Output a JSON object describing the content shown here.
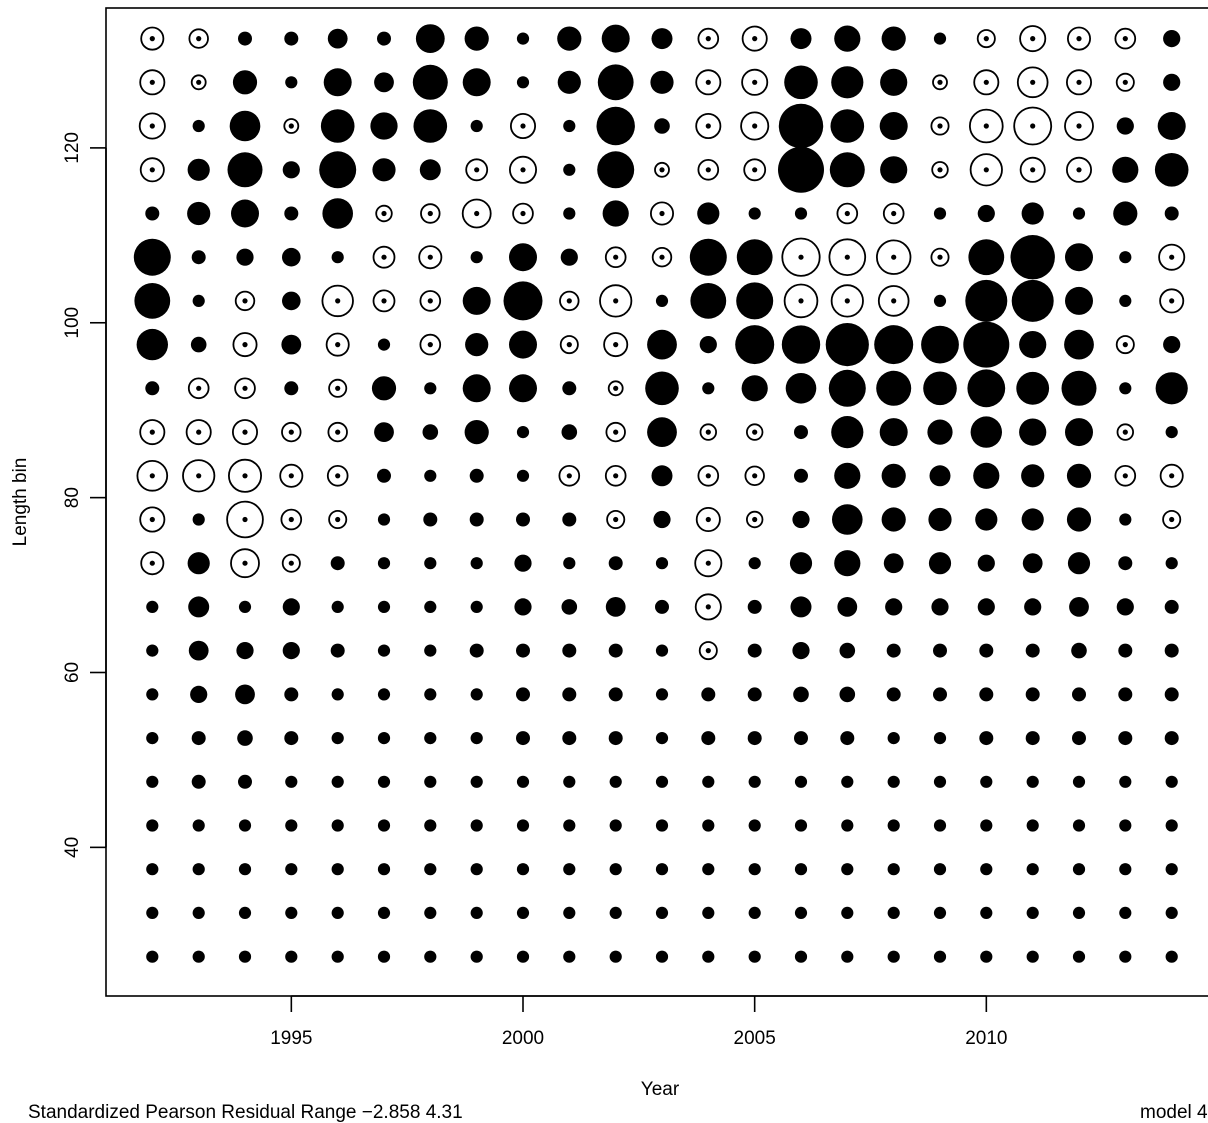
{
  "chart_data": {
    "type": "scatter",
    "subtype": "bubble-residual",
    "xlabel": "Year",
    "ylabel": "Length bin",
    "x_ticks": [
      1995,
      2000,
      2005,
      2010
    ],
    "y_ticks": [
      40,
      60,
      80,
      100,
      120
    ],
    "xlim": [
      1991.0,
      2015.0
    ],
    "ylim": [
      23.0,
      136.0
    ],
    "grid": false,
    "legend": "none",
    "footer_left": "Standardized Pearson Residual Range  −2.858 4.31",
    "footer_right": "model 4",
    "years": [
      1992,
      1993,
      1994,
      1995,
      1996,
      1997,
      1998,
      1999,
      2000,
      2001,
      2002,
      2003,
      2004,
      2005,
      2006,
      2007,
      2008,
      2009,
      2010,
      2011,
      2012,
      2013,
      2014
    ],
    "bins": [
      27.5,
      32.5,
      37.5,
      42.5,
      47.5,
      52.5,
      57.5,
      62.5,
      67.5,
      72.5,
      77.5,
      82.5,
      87.5,
      92.5,
      97.5,
      102.5,
      107.5,
      112.5,
      117.5,
      122.5,
      127.5,
      132.5
    ],
    "note_values": "residuals[i][j] = residual for bins[i] (row) and years[j] (column); filled = positive, open = negative; bubble area proportional to |residual|",
    "residuals": [
      [
        0.3,
        0.3,
        0.3,
        0.3,
        0.3,
        0.3,
        0.3,
        0.3,
        0.3,
        0.3,
        0.3,
        0.3,
        0.3,
        0.3,
        0.3,
        0.3,
        0.3,
        0.3,
        0.3,
        0.3,
        0.3,
        0.3,
        0.3
      ],
      [
        0.3,
        0.3,
        0.3,
        0.3,
        0.3,
        0.3,
        0.3,
        0.3,
        0.3,
        0.3,
        0.3,
        0.3,
        0.3,
        0.3,
        0.3,
        0.3,
        0.3,
        0.3,
        0.3,
        0.3,
        0.3,
        0.3,
        0.3
      ],
      [
        0.3,
        0.3,
        0.3,
        0.3,
        0.3,
        0.3,
        0.3,
        0.3,
        0.3,
        0.3,
        0.3,
        0.3,
        0.3,
        0.3,
        0.3,
        0.3,
        0.3,
        0.3,
        0.3,
        0.3,
        0.3,
        0.3,
        0.3
      ],
      [
        0.3,
        0.3,
        0.3,
        0.3,
        0.3,
        0.3,
        0.3,
        0.3,
        0.3,
        0.3,
        0.3,
        0.3,
        0.3,
        0.3,
        0.3,
        0.3,
        0.3,
        0.3,
        0.3,
        0.3,
        0.3,
        0.3,
        0.3
      ],
      [
        0.3,
        0.4,
        0.4,
        0.3,
        0.3,
        0.3,
        0.3,
        0.3,
        0.3,
        0.3,
        0.3,
        0.3,
        0.3,
        0.3,
        0.3,
        0.3,
        0.3,
        0.3,
        0.3,
        0.3,
        0.3,
        0.3,
        0.3
      ],
      [
        0.3,
        0.4,
        0.5,
        0.4,
        0.3,
        0.3,
        0.3,
        0.3,
        0.4,
        0.4,
        0.4,
        0.3,
        0.4,
        0.4,
        0.4,
        0.4,
        0.3,
        0.3,
        0.4,
        0.4,
        0.4,
        0.4,
        0.4
      ],
      [
        0.3,
        0.6,
        0.8,
        0.4,
        0.3,
        0.3,
        0.3,
        0.3,
        0.4,
        0.4,
        0.4,
        0.3,
        0.4,
        0.4,
        0.5,
        0.5,
        0.4,
        0.4,
        0.4,
        0.4,
        0.4,
        0.4,
        0.4
      ],
      [
        0.3,
        0.8,
        0.6,
        0.6,
        0.4,
        0.3,
        0.3,
        0.4,
        0.4,
        0.4,
        0.4,
        0.3,
        -0.6,
        0.4,
        0.6,
        0.5,
        0.4,
        0.4,
        0.4,
        0.4,
        0.5,
        0.4,
        0.4
      ],
      [
        0.3,
        0.9,
        0.3,
        0.6,
        0.3,
        0.3,
        0.3,
        0.3,
        0.6,
        0.5,
        0.8,
        0.4,
        -1.3,
        0.4,
        0.9,
        0.8,
        0.6,
        0.6,
        0.6,
        0.6,
        0.8,
        0.6,
        0.4
      ],
      [
        -1.0,
        1.0,
        -1.6,
        -0.6,
        0.4,
        0.3,
        0.3,
        0.3,
        0.6,
        0.3,
        0.4,
        0.3,
        -1.4,
        0.3,
        1.0,
        1.4,
        0.8,
        1.0,
        0.6,
        0.8,
        1.0,
        0.4,
        0.3
      ],
      [
        -1.2,
        0.3,
        -2.6,
        -0.8,
        -0.6,
        0.3,
        0.4,
        0.4,
        0.4,
        0.4,
        -0.6,
        0.6,
        -1.1,
        -0.5,
        0.6,
        1.9,
        1.2,
        1.1,
        1.0,
        1.0,
        1.2,
        0.3,
        -0.6
      ],
      [
        -1.8,
        -2.0,
        -2.1,
        -1.0,
        -0.8,
        0.4,
        0.3,
        0.4,
        0.3,
        -0.8,
        -0.8,
        0.9,
        -0.8,
        -0.7,
        0.4,
        1.4,
        1.2,
        0.9,
        1.4,
        1.1,
        1.2,
        -0.8,
        -1.0
      ],
      [
        -1.2,
        -1.2,
        -1.2,
        -0.7,
        -0.7,
        0.8,
        0.5,
        1.2,
        0.3,
        0.5,
        -0.7,
        1.8,
        -0.5,
        -0.5,
        0.4,
        2.1,
        1.6,
        1.3,
        2.0,
        1.5,
        1.6,
        -0.5,
        0.3
      ],
      [
        0.4,
        -0.8,
        -0.8,
        0.4,
        -0.6,
        1.2,
        0.3,
        1.6,
        1.6,
        0.4,
        -0.4,
        2.3,
        0.3,
        1.4,
        1.9,
        2.8,
        2.5,
        2.3,
        2.9,
        2.2,
        2.5,
        0.3,
        2.1
      ],
      [
        2.0,
        0.5,
        -1.1,
        0.8,
        -1.0,
        0.3,
        -0.8,
        1.1,
        1.6,
        -0.6,
        -1.1,
        1.8,
        0.6,
        3.1,
        3.0,
        3.8,
        3.1,
        2.9,
        4.31,
        1.5,
        1.8,
        -0.6,
        0.6
      ],
      [
        2.6,
        0.3,
        -0.7,
        0.7,
        -1.9,
        -0.9,
        -0.8,
        1.6,
        3.1,
        -0.7,
        -2.0,
        0.3,
        2.6,
        2.8,
        -2.2,
        -2.0,
        -1.8,
        0.3,
        3.6,
        3.6,
        1.6,
        0.3,
        -1.1
      ],
      [
        2.8,
        0.4,
        0.6,
        0.7,
        0.3,
        -0.9,
        -1.0,
        0.3,
        1.6,
        0.6,
        -0.8,
        -0.7,
        2.8,
        2.6,
        -2.858,
        -2.6,
        -2.3,
        -0.6,
        2.6,
        4.0,
        1.6,
        0.3,
        -1.3
      ],
      [
        0.4,
        1.1,
        1.6,
        0.4,
        1.9,
        -0.5,
        -0.7,
        -1.6,
        -0.8,
        0.3,
        1.4,
        -1.0,
        1.0,
        0.3,
        0.3,
        -0.8,
        -0.8,
        0.3,
        0.6,
        1.0,
        0.3,
        1.2,
        0.4
      ],
      [
        -1.1,
        1.0,
        2.5,
        0.6,
        2.8,
        1.1,
        0.9,
        -0.9,
        -1.4,
        0.3,
        2.8,
        -0.4,
        -0.8,
        -0.9,
        4.31,
        2.5,
        1.5,
        -0.5,
        -2.0,
        -1.2,
        -1.2,
        1.4,
        2.3
      ],
      [
        -1.3,
        0.3,
        1.9,
        -0.4,
        2.3,
        1.5,
        2.3,
        0.3,
        -1.2,
        0.3,
        3.0,
        0.5,
        -1.2,
        -1.5,
        4.0,
        2.3,
        1.6,
        -0.6,
        -2.2,
        -2.8,
        -1.6,
        0.6,
        1.6
      ],
      [
        -1.2,
        -0.4,
        1.2,
        0.3,
        1.6,
        0.8,
        2.5,
        1.6,
        0.3,
        1.1,
        2.6,
        1.1,
        -1.2,
        -1.3,
        2.3,
        2.1,
        1.5,
        -0.4,
        -1.2,
        -1.8,
        -1.2,
        -0.6,
        0.6
      ],
      [
        -1.0,
        -0.7,
        0.4,
        0.4,
        0.8,
        0.4,
        1.7,
        1.2,
        0.3,
        1.2,
        1.6,
        0.9,
        -0.8,
        -1.2,
        0.9,
        1.4,
        1.2,
        0.3,
        -0.6,
        -1.3,
        -1.0,
        -0.8,
        0.6
      ]
    ]
  }
}
